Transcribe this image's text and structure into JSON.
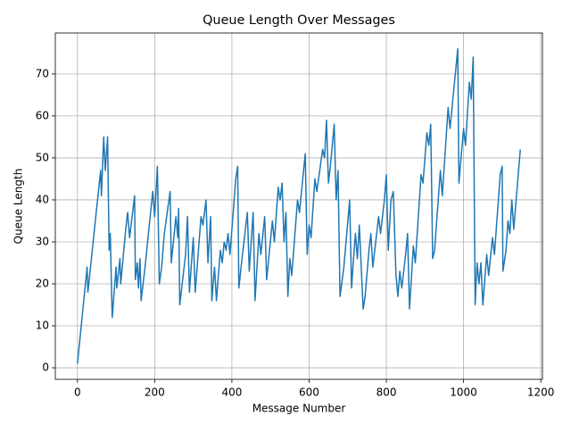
{
  "chart_data": {
    "type": "line",
    "title": "Queue Length Over Messages",
    "x_label": "Message Number",
    "y_label": "Queue Length",
    "color": "#1f77b4",
    "grid": true,
    "xlim": [
      -57.35,
      1204.35
    ],
    "ylim": [
      -2.75,
      79.75
    ],
    "xticks": [
      0,
      200,
      400,
      600,
      800,
      1000,
      1200
    ],
    "yticks": [
      0,
      10,
      20,
      30,
      40,
      50,
      60,
      70
    ],
    "x": [
      0,
      25,
      27,
      60,
      62,
      68,
      72,
      78,
      82,
      85,
      90,
      100,
      102,
      110,
      112,
      125,
      130,
      135,
      148,
      150,
      155,
      158,
      162,
      165,
      175,
      195,
      200,
      207,
      212,
      218,
      225,
      240,
      243,
      255,
      260,
      262,
      265,
      280,
      285,
      290,
      300,
      305,
      320,
      325,
      333,
      338,
      345,
      348,
      355,
      360,
      370,
      375,
      380,
      385,
      390,
      395,
      410,
      415,
      418,
      425,
      440,
      445,
      455,
      460,
      470,
      475,
      485,
      490,
      505,
      510,
      520,
      525,
      530,
      535,
      540,
      545,
      550,
      555,
      570,
      575,
      590,
      595,
      600,
      605,
      615,
      620,
      635,
      640,
      645,
      650,
      655,
      665,
      670,
      675,
      680,
      690,
      705,
      710,
      715,
      720,
      725,
      730,
      740,
      745,
      755,
      760,
      765,
      770,
      780,
      785,
      795,
      800,
      805,
      812,
      818,
      825,
      830,
      835,
      840,
      850,
      855,
      860,
      870,
      875,
      890,
      895,
      905,
      910,
      915,
      920,
      925,
      940,
      945,
      960,
      965,
      985,
      988,
      1000,
      1005,
      1015,
      1020,
      1025,
      1030,
      1035,
      1040,
      1045,
      1050,
      1060,
      1065,
      1075,
      1080,
      1095,
      1100,
      1102,
      1110,
      1115,
      1120,
      1125,
      1130,
      1147
    ],
    "values": [
      1,
      24,
      18,
      47,
      41,
      55,
      47,
      55,
      28,
      32,
      12,
      24,
      19,
      26,
      20,
      33,
      37,
      31,
      41,
      21,
      25,
      19,
      26,
      16,
      24,
      42,
      36,
      48,
      20,
      24,
      32,
      42,
      25,
      36,
      31,
      38,
      15,
      27,
      36,
      18,
      31,
      18,
      36,
      34,
      40,
      25,
      36,
      16,
      24,
      16,
      28,
      25,
      30,
      28,
      32,
      27,
      45,
      48,
      19,
      25,
      37,
      23,
      37,
      16,
      32,
      27,
      36,
      21,
      35,
      30,
      43,
      40,
      44,
      30,
      37,
      17,
      26,
      22,
      40,
      37,
      51,
      27,
      34,
      31,
      45,
      42,
      52,
      50,
      59,
      44,
      48,
      58,
      40,
      47,
      17,
      24,
      40,
      19,
      26,
      32,
      26,
      34,
      14,
      17,
      28,
      32,
      24,
      28,
      36,
      32,
      40,
      46,
      28,
      40,
      42,
      22,
      17,
      23,
      19,
      27,
      32,
      14,
      29,
      25,
      46,
      44,
      56,
      53,
      58,
      26,
      28,
      47,
      41,
      62,
      57,
      76,
      44,
      57,
      53,
      68,
      64,
      74,
      15,
      25,
      20,
      25,
      15,
      27,
      22,
      31,
      27,
      46,
      48,
      23,
      28,
      35,
      32,
      40,
      33,
      52
    ]
  }
}
